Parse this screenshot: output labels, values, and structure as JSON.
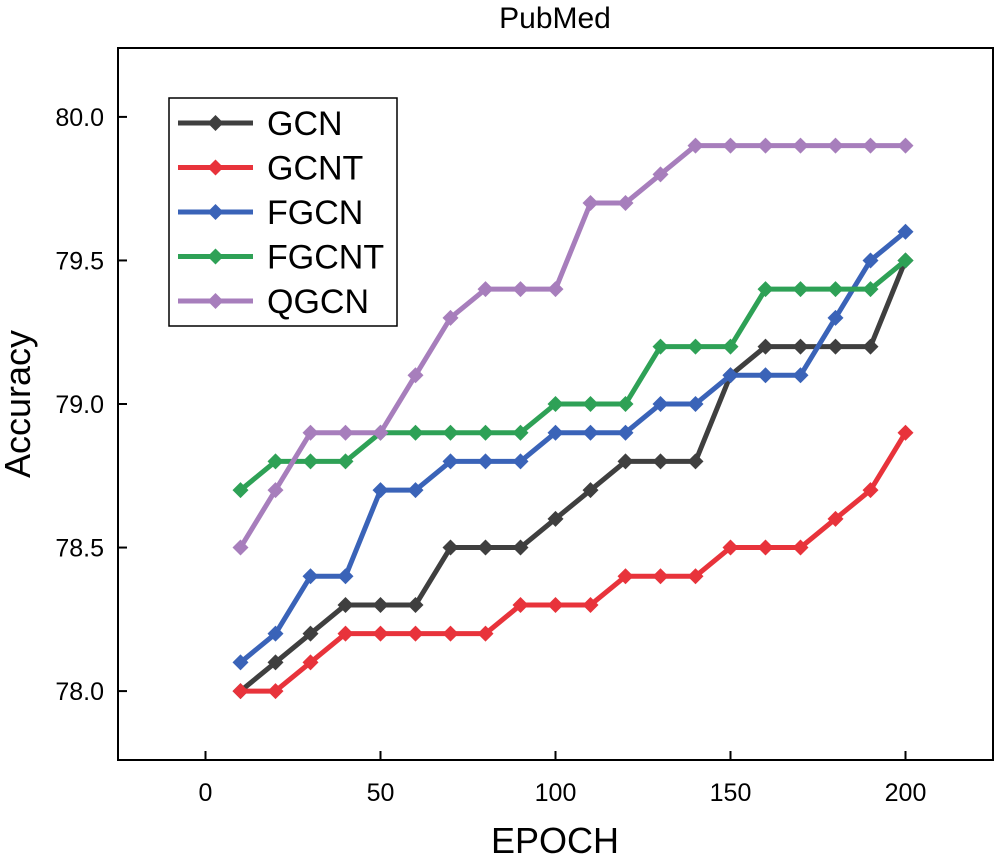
{
  "chart_data": {
    "type": "line",
    "title": "PubMed",
    "xlabel": "EPOCH",
    "ylabel": "Accuracy",
    "xlim": [
      -25,
      225
    ],
    "ylim": [
      77.76,
      80.24
    ],
    "xticks": [
      0,
      50,
      100,
      150,
      200
    ],
    "yticks": [
      78.0,
      78.5,
      79.0,
      79.5,
      80.0
    ],
    "x": [
      10,
      20,
      30,
      40,
      50,
      60,
      70,
      80,
      90,
      100,
      110,
      120,
      130,
      140,
      150,
      160,
      170,
      180,
      190,
      200
    ],
    "legend_position": "top-left",
    "grid": false,
    "marker": "diamond",
    "series": [
      {
        "name": "GCN",
        "color": "#3f3f3f",
        "values": [
          78.0,
          78.1,
          78.2,
          78.3,
          78.3,
          78.3,
          78.5,
          78.5,
          78.5,
          78.6,
          78.7,
          78.8,
          78.8,
          78.8,
          79.1,
          79.2,
          79.2,
          79.2,
          79.2,
          79.5
        ]
      },
      {
        "name": "GCNT",
        "color": "#e8333b",
        "values": [
          78.0,
          78.0,
          78.1,
          78.2,
          78.2,
          78.2,
          78.2,
          78.2,
          78.3,
          78.3,
          78.3,
          78.4,
          78.4,
          78.4,
          78.5,
          78.5,
          78.5,
          78.6,
          78.7,
          78.9
        ]
      },
      {
        "name": "FGCN",
        "color": "#3a63b8",
        "values": [
          78.1,
          78.2,
          78.4,
          78.4,
          78.7,
          78.7,
          78.8,
          78.8,
          78.8,
          78.9,
          78.9,
          78.9,
          79.0,
          79.0,
          79.1,
          79.1,
          79.1,
          79.3,
          79.5,
          79.6
        ]
      },
      {
        "name": "FGCNT",
        "color": "#2ea156",
        "values": [
          78.7,
          78.8,
          78.8,
          78.8,
          78.9,
          78.9,
          78.9,
          78.9,
          78.9,
          79.0,
          79.0,
          79.0,
          79.2,
          79.2,
          79.2,
          79.4,
          79.4,
          79.4,
          79.4,
          79.5
        ]
      },
      {
        "name": "QGCN",
        "color": "#a77ebc",
        "values": [
          78.5,
          78.7,
          78.9,
          78.9,
          78.9,
          79.1,
          79.3,
          79.4,
          79.4,
          79.4,
          79.7,
          79.7,
          79.8,
          79.9,
          79.9,
          79.9,
          79.9,
          79.9,
          79.9,
          79.9
        ]
      }
    ]
  }
}
